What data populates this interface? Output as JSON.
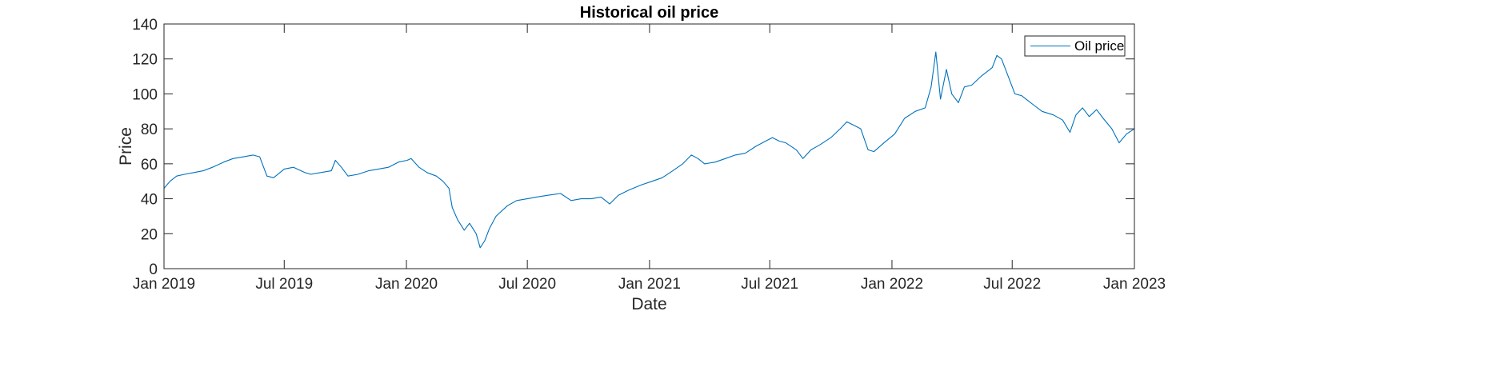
{
  "chart_data": {
    "type": "line",
    "title": "Historical oil price",
    "xlabel": "Date",
    "ylabel": "Price",
    "xlim": [
      "2019-01-01",
      "2023-01-01"
    ],
    "ylim": [
      0,
      140
    ],
    "x_ticks": [
      {
        "date": "2019-01-01",
        "label": "Jan 2019"
      },
      {
        "date": "2019-07-01",
        "label": "Jul 2019"
      },
      {
        "date": "2020-01-01",
        "label": "Jan 2020"
      },
      {
        "date": "2020-07-01",
        "label": "Jul 2020"
      },
      {
        "date": "2021-01-01",
        "label": "Jan 2021"
      },
      {
        "date": "2021-07-01",
        "label": "Jul 2021"
      },
      {
        "date": "2022-01-01",
        "label": "Jan 2022"
      },
      {
        "date": "2022-07-01",
        "label": "Jul 2022"
      },
      {
        "date": "2023-01-01",
        "label": "Jan 2023"
      }
    ],
    "y_ticks": [
      0,
      20,
      40,
      60,
      80,
      100,
      120,
      140
    ],
    "grid": false,
    "legend_position": "top-right",
    "series": [
      {
        "name": "Oil price",
        "color": "#0072BD",
        "points": [
          [
            "2019-01-01",
            46
          ],
          [
            "2019-01-10",
            50
          ],
          [
            "2019-01-20",
            53
          ],
          [
            "2019-02-01",
            54
          ],
          [
            "2019-02-15",
            55
          ],
          [
            "2019-03-01",
            56
          ],
          [
            "2019-03-15",
            58
          ],
          [
            "2019-04-01",
            61
          ],
          [
            "2019-04-15",
            63
          ],
          [
            "2019-05-01",
            64
          ],
          [
            "2019-05-15",
            65
          ],
          [
            "2019-05-25",
            64
          ],
          [
            "2019-06-05",
            53
          ],
          [
            "2019-06-15",
            52
          ],
          [
            "2019-07-01",
            57
          ],
          [
            "2019-07-15",
            58
          ],
          [
            "2019-08-01",
            55
          ],
          [
            "2019-08-10",
            54
          ],
          [
            "2019-08-25",
            55
          ],
          [
            "2019-09-10",
            56
          ],
          [
            "2019-09-16",
            62
          ],
          [
            "2019-09-25",
            58
          ],
          [
            "2019-10-05",
            53
          ],
          [
            "2019-10-20",
            54
          ],
          [
            "2019-11-05",
            56
          ],
          [
            "2019-11-20",
            57
          ],
          [
            "2019-12-05",
            58
          ],
          [
            "2019-12-20",
            61
          ],
          [
            "2020-01-02",
            62
          ],
          [
            "2020-01-08",
            63
          ],
          [
            "2020-01-20",
            58
          ],
          [
            "2020-02-01",
            55
          ],
          [
            "2020-02-15",
            53
          ],
          [
            "2020-02-25",
            50
          ],
          [
            "2020-03-05",
            46
          ],
          [
            "2020-03-10",
            35
          ],
          [
            "2020-03-18",
            28
          ],
          [
            "2020-03-28",
            22
          ],
          [
            "2020-04-05",
            26
          ],
          [
            "2020-04-15",
            20
          ],
          [
            "2020-04-21",
            12
          ],
          [
            "2020-04-28",
            16
          ],
          [
            "2020-05-05",
            23
          ],
          [
            "2020-05-15",
            30
          ],
          [
            "2020-06-01",
            36
          ],
          [
            "2020-06-15",
            39
          ],
          [
            "2020-07-01",
            40
          ],
          [
            "2020-07-15",
            41
          ],
          [
            "2020-08-01",
            42
          ],
          [
            "2020-08-20",
            43
          ],
          [
            "2020-09-05",
            39
          ],
          [
            "2020-09-20",
            40
          ],
          [
            "2020-10-05",
            40
          ],
          [
            "2020-10-20",
            41
          ],
          [
            "2020-11-02",
            37
          ],
          [
            "2020-11-15",
            42
          ],
          [
            "2020-12-01",
            45
          ],
          [
            "2020-12-20",
            48
          ],
          [
            "2021-01-05",
            50
          ],
          [
            "2021-01-20",
            52
          ],
          [
            "2021-02-05",
            56
          ],
          [
            "2021-02-20",
            60
          ],
          [
            "2021-03-05",
            65
          ],
          [
            "2021-03-15",
            63
          ],
          [
            "2021-03-25",
            60
          ],
          [
            "2021-04-10",
            61
          ],
          [
            "2021-04-25",
            63
          ],
          [
            "2021-05-10",
            65
          ],
          [
            "2021-05-25",
            66
          ],
          [
            "2021-06-10",
            70
          ],
          [
            "2021-06-25",
            73
          ],
          [
            "2021-07-05",
            75
          ],
          [
            "2021-07-15",
            73
          ],
          [
            "2021-07-25",
            72
          ],
          [
            "2021-08-10",
            68
          ],
          [
            "2021-08-20",
            63
          ],
          [
            "2021-09-01",
            68
          ],
          [
            "2021-09-15",
            71
          ],
          [
            "2021-10-01",
            75
          ],
          [
            "2021-10-15",
            80
          ],
          [
            "2021-10-25",
            84
          ],
          [
            "2021-11-05",
            82
          ],
          [
            "2021-11-15",
            80
          ],
          [
            "2021-11-26",
            68
          ],
          [
            "2021-12-05",
            67
          ],
          [
            "2021-12-20",
            72
          ],
          [
            "2022-01-05",
            77
          ],
          [
            "2022-01-20",
            86
          ],
          [
            "2022-02-05",
            90
          ],
          [
            "2022-02-20",
            92
          ],
          [
            "2022-03-01",
            104
          ],
          [
            "2022-03-08",
            124
          ],
          [
            "2022-03-15",
            97
          ],
          [
            "2022-03-24",
            114
          ],
          [
            "2022-04-01",
            100
          ],
          [
            "2022-04-11",
            95
          ],
          [
            "2022-04-20",
            104
          ],
          [
            "2022-05-01",
            105
          ],
          [
            "2022-05-15",
            110
          ],
          [
            "2022-06-01",
            115
          ],
          [
            "2022-06-08",
            122
          ],
          [
            "2022-06-15",
            120
          ],
          [
            "2022-06-25",
            110
          ],
          [
            "2022-07-05",
            100
          ],
          [
            "2022-07-15",
            99
          ],
          [
            "2022-08-01",
            94
          ],
          [
            "2022-08-15",
            90
          ],
          [
            "2022-09-01",
            88
          ],
          [
            "2022-09-15",
            85
          ],
          [
            "2022-09-26",
            78
          ],
          [
            "2022-10-05",
            88
          ],
          [
            "2022-10-15",
            92
          ],
          [
            "2022-10-25",
            87
          ],
          [
            "2022-11-05",
            91
          ],
          [
            "2022-11-15",
            86
          ],
          [
            "2022-11-28",
            80
          ],
          [
            "2022-12-09",
            72
          ],
          [
            "2022-12-20",
            77
          ],
          [
            "2023-01-01",
            80
          ]
        ]
      }
    ]
  }
}
